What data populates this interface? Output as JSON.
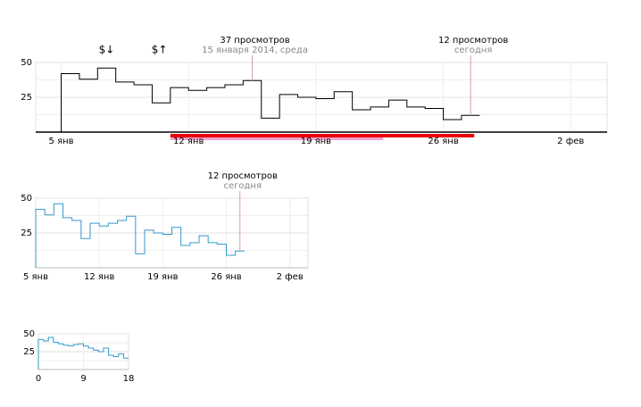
{
  "chart_data": [
    {
      "type": "step",
      "series": [
        {
          "color": "#000000",
          "values": [
            42,
            38,
            46,
            36,
            34,
            21,
            32,
            30,
            32,
            34,
            37,
            10,
            27,
            25,
            24,
            29,
            16,
            18,
            23,
            18,
            17,
            9,
            12
          ]
        }
      ],
      "xlim": [
        -1.4,
        30
      ],
      "ylim": [
        0,
        50
      ],
      "xticks": [
        {
          "value": 0,
          "label": "5 янв"
        },
        {
          "value": 7,
          "label": "12 янв"
        },
        {
          "value": 14,
          "label": "19 янв"
        },
        {
          "value": 21,
          "label": "26 янв"
        },
        {
          "value": 28,
          "label": "2 фев"
        }
      ],
      "yticks": [
        25,
        50
      ],
      "minor_yticks": [
        12.5,
        37.5
      ],
      "grid": true,
      "annotations": [
        {
          "text": "37 просмотров",
          "subtext": "15 января 2014, среда",
          "x": 10
        },
        {
          "text": "12 просмотров",
          "subtext": "сегодня",
          "x": 22
        }
      ],
      "markers": [
        {
          "text": "$↓",
          "x": 2.5
        },
        {
          "text": "$↑",
          "x": 5.4
        }
      ],
      "ranges": [
        {
          "from": 6,
          "to": 22.7,
          "color": "#e8000b"
        },
        {
          "from": 6,
          "to": 17.7,
          "color": "#f4a0d0"
        }
      ]
    },
    {
      "type": "step",
      "series": [
        {
          "color": "#3399cc",
          "values": [
            42,
            38,
            46,
            36,
            34,
            21,
            32,
            30,
            32,
            34,
            37,
            10,
            27,
            25,
            24,
            29,
            16,
            18,
            23,
            18,
            17,
            9,
            12
          ]
        }
      ],
      "xlim": [
        0,
        30
      ],
      "ylim": [
        0,
        50
      ],
      "xticks": [
        {
          "value": 0,
          "label": "5 янв"
        },
        {
          "value": 7,
          "label": "12 янв"
        },
        {
          "value": 14,
          "label": "19 янв"
        },
        {
          "value": 21,
          "label": "26 янв"
        },
        {
          "value": 28,
          "label": "2 фев"
        }
      ],
      "yticks": [
        25,
        50
      ],
      "minor_yticks": [
        12.5,
        37.5
      ],
      "grid": true,
      "annotations": [
        {
          "text": "12 просмотров",
          "subtext": "сегодня",
          "x": 22
        }
      ]
    },
    {
      "type": "step",
      "series": [
        {
          "color": "#3399cc",
          "values": [
            42,
            40,
            45,
            38,
            36,
            34,
            33,
            35,
            36,
            33,
            30,
            27,
            25,
            30,
            20,
            18,
            22,
            16
          ]
        }
      ],
      "xlim": [
        0,
        18
      ],
      "ylim": [
        0,
        50
      ],
      "xticks": [
        0,
        9,
        18
      ],
      "yticks": [
        25,
        50
      ],
      "minor_yticks": [
        12.5,
        37.5
      ],
      "grid": true
    }
  ]
}
